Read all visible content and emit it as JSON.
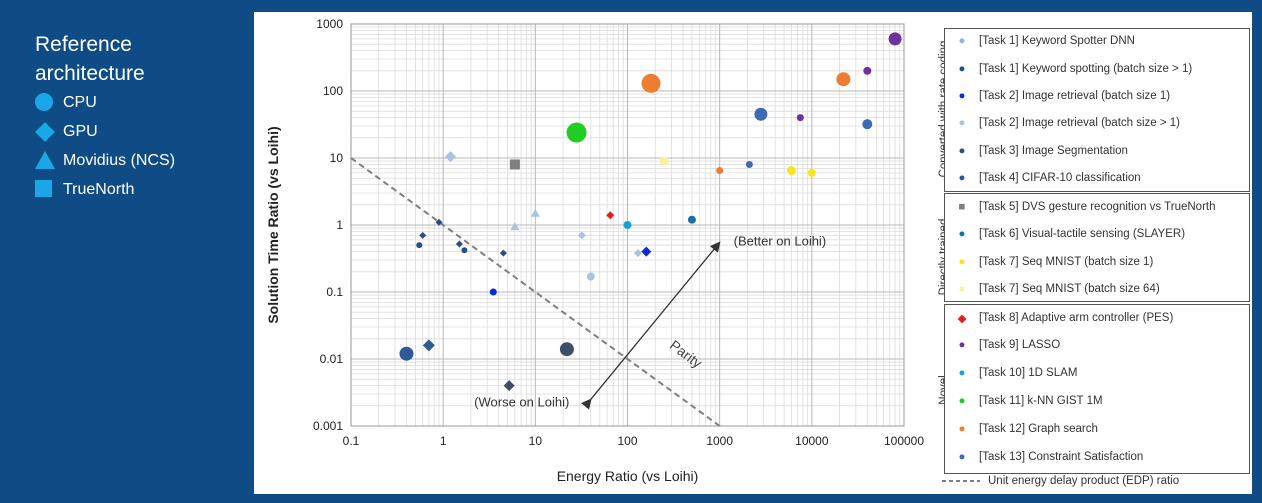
{
  "reference": {
    "title": "Reference architecture",
    "items": [
      {
        "label": "CPU",
        "shape": "circle"
      },
      {
        "label": "GPU",
        "shape": "diamond"
      },
      {
        "label": "Movidius (NCS)",
        "shape": "triangle"
      },
      {
        "label": "TrueNorth",
        "shape": "square"
      }
    ],
    "color": "#1aa7e8"
  },
  "chart_data": {
    "type": "scatter",
    "xlabel": "Energy Ratio (vs Loihi)",
    "ylabel": "Solution Time Ratio (vs Loihi)",
    "xscale": "log",
    "yscale": "log",
    "xlim": [
      0.1,
      100000
    ],
    "ylim": [
      0.001,
      1000
    ],
    "xticks": [
      "0.1",
      "1",
      "10",
      "100",
      "1000",
      "10000",
      "100000"
    ],
    "yticks": [
      "0.001",
      "0.01",
      "0.1",
      "1",
      "10",
      "100",
      "1000"
    ],
    "annotations": {
      "better": "(Better on Loihi)",
      "worse": "(Worse on Loihi)",
      "parity": "Parity"
    },
    "parity_line": {
      "from": [
        0.1,
        10
      ],
      "to": [
        1000,
        0.001
      ]
    },
    "points": [
      {
        "task": 1,
        "x": 0.55,
        "y": 0.5,
        "shape": "circle",
        "size": 6,
        "color": "#2a4f86"
      },
      {
        "task": 1,
        "x": 0.6,
        "y": 0.7,
        "shape": "diamond",
        "size": 7,
        "color": "#2a4f86"
      },
      {
        "task": 1,
        "x": 0.9,
        "y": 1.1,
        "shape": "diamond",
        "size": 7,
        "color": "#2a4f86"
      },
      {
        "task": 1,
        "x": 1.5,
        "y": 0.52,
        "shape": "diamond",
        "size": 7,
        "color": "#2a4f86"
      },
      {
        "task": 1,
        "x": 1.7,
        "y": 0.42,
        "shape": "circle",
        "size": 6,
        "color": "#2a4f86"
      },
      {
        "task": 1,
        "x": 4.5,
        "y": 0.38,
        "shape": "diamond",
        "size": 7,
        "color": "#2a4f86"
      },
      {
        "task": 1,
        "x": 0.4,
        "y": 0.012,
        "shape": "circle",
        "size": 14,
        "color": "#2e5a95"
      },
      {
        "task": 1,
        "x": 0.7,
        "y": 0.016,
        "shape": "diamond",
        "size": 12,
        "color": "#2e5a95"
      },
      {
        "task": 1,
        "x": 5.2,
        "y": 0.004,
        "shape": "diamond",
        "size": 11,
        "color": "#3d4f66"
      },
      {
        "task": 3,
        "x": 22,
        "y": 0.014,
        "shape": "circle",
        "size": 14,
        "color": "#3d4f66"
      },
      {
        "task": 2,
        "x": 3.5,
        "y": 0.1,
        "shape": "circle",
        "size": 7,
        "color": "#0a2bd1"
      },
      {
        "task": 2,
        "x": 160,
        "y": 0.4,
        "shape": "diamond",
        "size": 10,
        "color": "#0a2bd1"
      },
      {
        "task": 2,
        "x": 1.2,
        "y": 10.5,
        "shape": "diamond",
        "size": 11,
        "color": "#a9c3e4"
      },
      {
        "task": 2,
        "x": 32,
        "y": 0.7,
        "shape": "diamond",
        "size": 8,
        "color": "#a9c3e4"
      },
      {
        "task": 2,
        "x": 40,
        "y": 0.17,
        "shape": "circle",
        "size": 8,
        "color": "#a9c3e4"
      },
      {
        "task": 2,
        "x": 130,
        "y": 0.38,
        "shape": "diamond",
        "size": 8,
        "color": "#a9c3e4"
      },
      {
        "task": 2,
        "x": 6,
        "y": 0.95,
        "shape": "triangle",
        "size": 9,
        "color": "#a9c3e4"
      },
      {
        "task": 2,
        "x": 10,
        "y": 1.5,
        "shape": "triangle",
        "size": 9,
        "color": "#a9c3e4"
      },
      {
        "task": 4,
        "x": 2800,
        "y": 45,
        "shape": "circle",
        "size": 13,
        "color": "#3d6bb3"
      },
      {
        "task": 4,
        "x": 2100,
        "y": 8,
        "shape": "circle",
        "size": 7,
        "color": "#3d6bb3"
      },
      {
        "task": 4,
        "x": 40000,
        "y": 32,
        "shape": "circle",
        "size": 10,
        "color": "#3d6bb3"
      },
      {
        "task": 5,
        "x": 6,
        "y": 8,
        "shape": "square",
        "size": 10,
        "color": "#7f7f7f"
      },
      {
        "task": 6,
        "x": 100,
        "y": 1,
        "shape": "circle",
        "size": 8,
        "color": "#1aa0d8"
      },
      {
        "task": 6,
        "x": 500,
        "y": 1.2,
        "shape": "circle",
        "size": 8,
        "color": "#1a6fa8"
      },
      {
        "task": 7,
        "x": 6000,
        "y": 6.5,
        "shape": "circle",
        "size": 9,
        "color": "#f5e51f"
      },
      {
        "task": 7,
        "x": 10000,
        "y": 6,
        "shape": "circle",
        "size": 8,
        "color": "#f5e51f"
      },
      {
        "task": 7,
        "x": 250,
        "y": 9,
        "shape": "circle",
        "size": 9,
        "color": "#f8f39a"
      },
      {
        "task": 8,
        "x": 65,
        "y": 1.4,
        "shape": "diamond",
        "size": 8,
        "color": "#e02020"
      },
      {
        "task": 9,
        "x": 80000,
        "y": 600,
        "shape": "circle",
        "size": 13,
        "color": "#7030a0"
      },
      {
        "task": 9,
        "x": 40000,
        "y": 200,
        "shape": "circle",
        "size": 8,
        "color": "#7030a0"
      },
      {
        "task": 9,
        "x": 7500,
        "y": 40,
        "shape": "circle",
        "size": 7,
        "color": "#7030a0"
      },
      {
        "task": 11,
        "x": 28,
        "y": 24,
        "shape": "circle",
        "size": 20,
        "color": "#22cc22"
      },
      {
        "task": 12,
        "x": 180,
        "y": 130,
        "shape": "circle",
        "size": 19,
        "color": "#ed7d31"
      },
      {
        "task": 12,
        "x": 22000,
        "y": 150,
        "shape": "circle",
        "size": 14,
        "color": "#ed7d31"
      },
      {
        "task": 12,
        "x": 1000,
        "y": 6.5,
        "shape": "circle",
        "size": 7,
        "color": "#ed7d31"
      }
    ],
    "legend": {
      "groups": [
        {
          "label": "Converted with rate coding",
          "items": [
            {
              "label": "[Task 1] Keyword Spotter DNN",
              "color": "#8fb4e3",
              "shape": "circle"
            },
            {
              "label": "[Task 1] Keyword spotting (batch size > 1)",
              "color": "#2a4f86",
              "shape": "circle"
            },
            {
              "label": "[Task 2] Image retrieval (batch size 1)",
              "color": "#0a2bd1",
              "shape": "circle"
            },
            {
              "label": "[Task 2] Image retrieval (batch size > 1)",
              "color": "#a9c3e4",
              "shape": "circle"
            },
            {
              "label": "[Task 3] Image Segmentation",
              "color": "#3d4f66",
              "shape": "circle"
            },
            {
              "label": "[Task 4] CIFAR-10 classification",
              "color": "#2e5a95",
              "shape": "circle"
            }
          ]
        },
        {
          "label": "Directly trained",
          "items": [
            {
              "label": "[Task 5] DVS gesture recognition vs TrueNorth",
              "color": "#7f7f7f",
              "shape": "square"
            },
            {
              "label": "[Task 6] Visual-tactile sensing (SLAYER)",
              "color": "#1a6fa8",
              "shape": "circle"
            },
            {
              "label": "[Task 7] Seq MNIST (batch size 1)",
              "color": "#f5e51f",
              "shape": "circle"
            },
            {
              "label": "[Task 7] Seq MNIST (batch size 64)",
              "color": "#f8f39a",
              "shape": "circle"
            }
          ]
        },
        {
          "label": "Novel",
          "items": [
            {
              "label": "[Task 8] Adaptive arm controller (PES)",
              "color": "#e02020",
              "shape": "diamond"
            },
            {
              "label": "[Task 9] LASSO",
              "color": "#7030a0",
              "shape": "circle"
            },
            {
              "label": "[Task 10] 1D SLAM",
              "color": "#1aa0d8",
              "shape": "circle"
            },
            {
              "label": "[Task 11] k-NN GIST 1M",
              "color": "#22cc22",
              "shape": "circle"
            },
            {
              "label": "[Task 12] Graph search",
              "color": "#ed7d31",
              "shape": "circle"
            },
            {
              "label": "[Task 13] Constraint Satisfaction",
              "color": "#3d6bb3",
              "shape": "circle"
            }
          ]
        }
      ],
      "footer": "Unit energy delay product (EDP) ratio"
    }
  }
}
